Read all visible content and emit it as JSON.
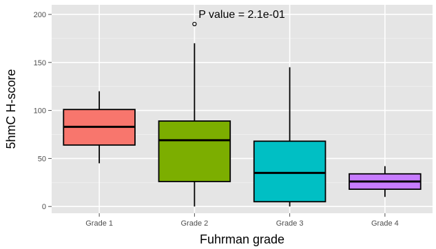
{
  "chart_data": {
    "type": "boxplot",
    "xlabel": "Fuhrman grade",
    "ylabel": "5hmC H-score",
    "ylim": [
      -7,
      210
    ],
    "yticks": [
      0,
      50,
      100,
      150,
      200
    ],
    "grid": true,
    "annotation": "P value = 2.1e-01",
    "categories": [
      "Grade 1",
      "Grade 2",
      "Grade 3",
      "Grade 4"
    ],
    "boxes": [
      {
        "category": "Grade 1",
        "min": 45,
        "q1": 64,
        "median": 83,
        "q3": 101,
        "max": 120,
        "outliers": [],
        "color": "#F8766D"
      },
      {
        "category": "Grade 2",
        "min": 0,
        "q1": 26,
        "median": 69,
        "q3": 89,
        "max": 170,
        "outliers": [
          190
        ],
        "color": "#7CAE00"
      },
      {
        "category": "Grade 3",
        "min": 0,
        "q1": 5,
        "median": 35,
        "q3": 68,
        "max": 145,
        "outliers": [],
        "color": "#00BFC4"
      },
      {
        "category": "Grade 4",
        "min": 10,
        "q1": 18,
        "median": 26,
        "q3": 34,
        "max": 42,
        "outliers": [],
        "color": "#C77CFF"
      }
    ],
    "colors": {
      "panel": "#e5e5e5",
      "grid_major": "#ffffff",
      "grid_minor": "#f2f2f2"
    }
  }
}
